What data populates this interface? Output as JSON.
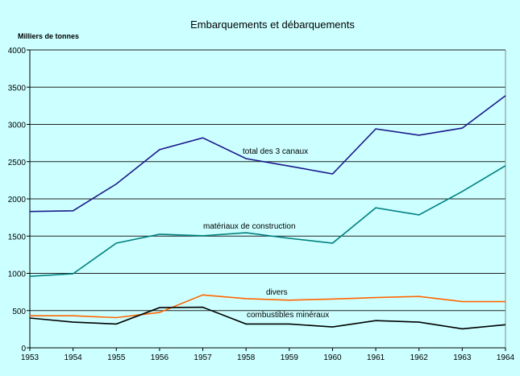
{
  "chart_data": {
    "type": "line",
    "title": "Embarquements et débarquements",
    "ylabel": "Milliers de tonnes",
    "xlabel": "",
    "ylim": [
      0,
      4000
    ],
    "yticks": [
      0,
      500,
      1000,
      1500,
      2000,
      2500,
      3000,
      3500,
      4000
    ],
    "grid": true,
    "x": [
      1953,
      1954,
      1955,
      1956,
      1957,
      1958,
      1959,
      1960,
      1961,
      1962,
      1963,
      1964
    ],
    "series": [
      {
        "name": "total des 3 canaux",
        "color": "#1a1a8c",
        "values": [
          1830,
          1840,
          2200,
          2660,
          2820,
          2540,
          2440,
          2335,
          2940,
          2855,
          2950,
          3385
        ]
      },
      {
        "name": "matériaux de construction",
        "color": "#008080",
        "values": [
          960,
          995,
          1405,
          1525,
          1505,
          1545,
          1470,
          1405,
          1880,
          1785,
          2100,
          2445
        ]
      },
      {
        "name": "divers",
        "color": "#ff6600",
        "values": [
          430,
          430,
          405,
          475,
          710,
          660,
          640,
          655,
          675,
          690,
          620,
          620
        ]
      },
      {
        "name": "combustibles minéraux",
        "color": "#000000",
        "values": [
          400,
          345,
          320,
          540,
          545,
          320,
          320,
          280,
          365,
          345,
          255,
          310
        ]
      }
    ]
  }
}
